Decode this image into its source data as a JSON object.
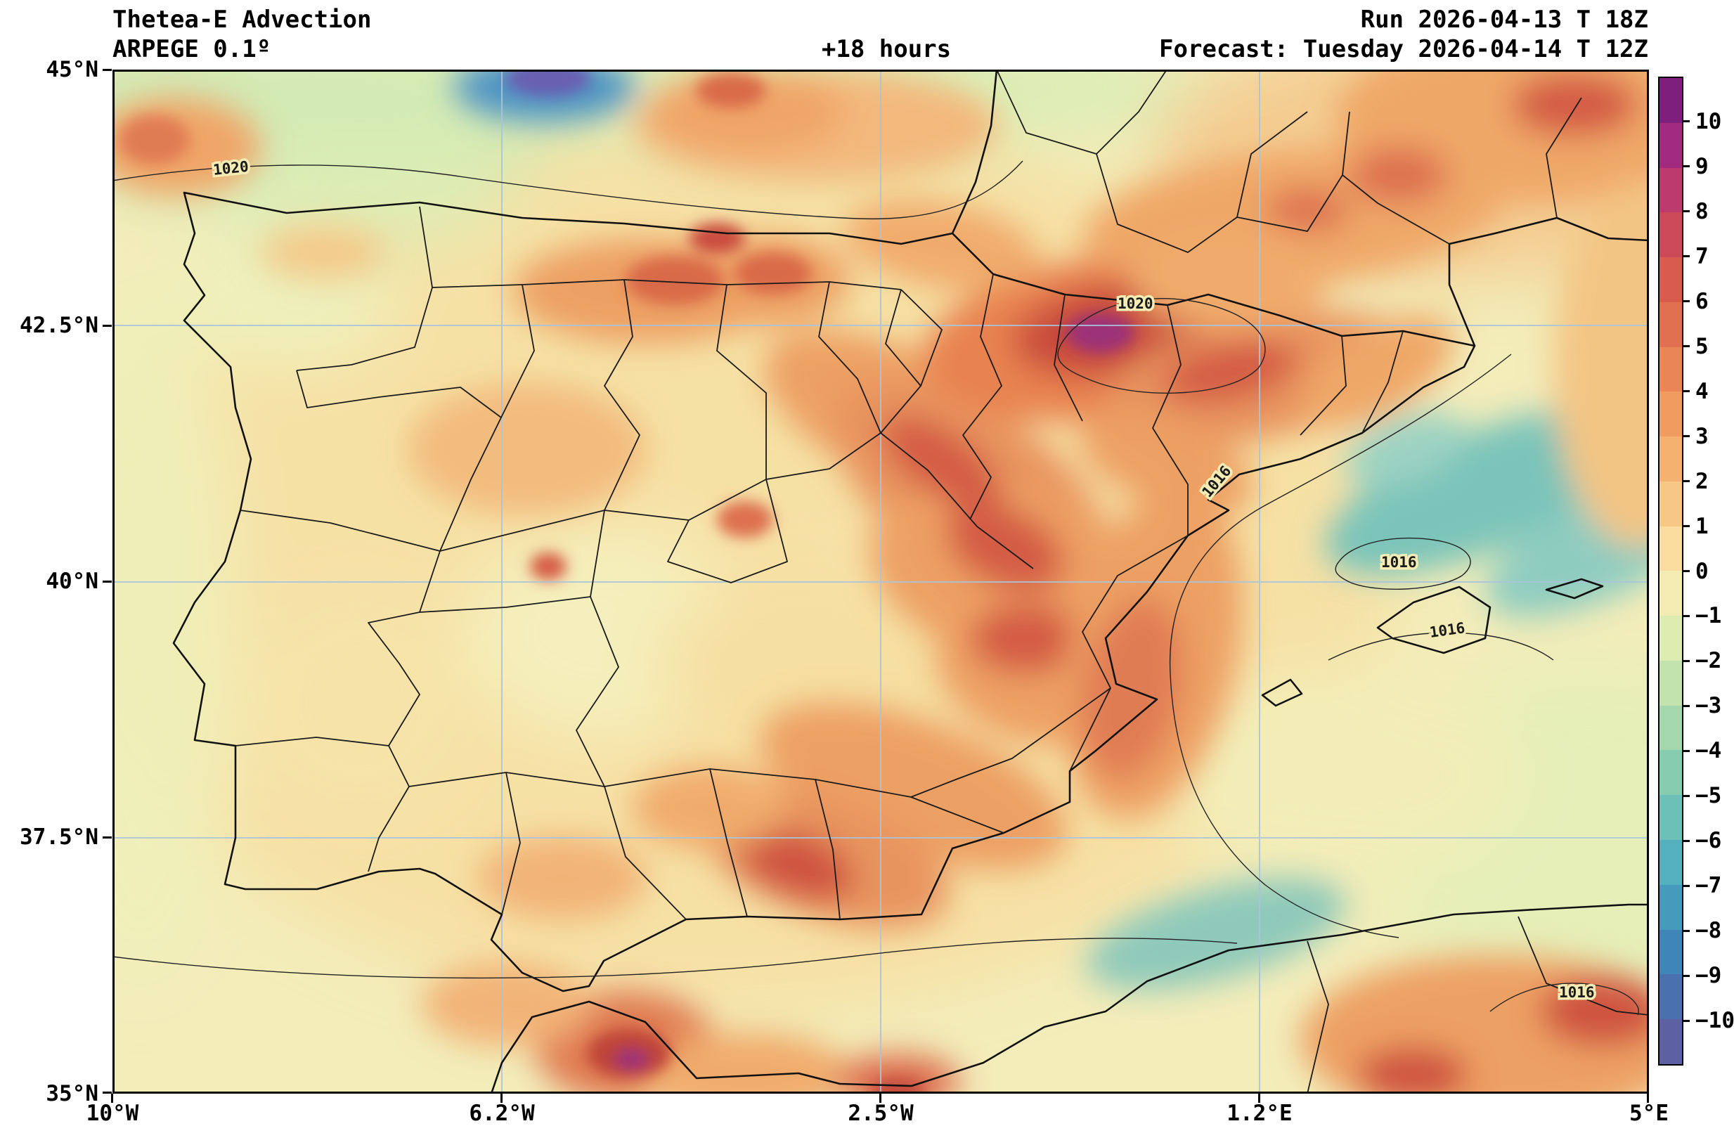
{
  "header": {
    "title": "Thetea-E Advection",
    "model": "ARPEGE 0.1º",
    "lead_time": "+18 hours",
    "run": "Run 2026-04-13 T 18Z",
    "forecast": "Forecast: Tuesday 2026-04-14 T 12Z"
  },
  "axes": {
    "x_ticks": [
      "10°W",
      "6.2°W",
      "2.5°W",
      "1.2°E",
      "5°E"
    ],
    "y_ticks": [
      "45°N",
      "42.5°N",
      "40°N",
      "37.5°N",
      "35°N"
    ]
  },
  "colorbar": {
    "ticks": [
      "10",
      "9",
      "8",
      "7",
      "6",
      "5",
      "4",
      "3",
      "2",
      "1",
      "0",
      "−1",
      "−2",
      "−3",
      "−4",
      "−5",
      "−6",
      "−7",
      "−8",
      "−9",
      "−10"
    ],
    "colors": [
      "#7e1f7e",
      "#a02a7e",
      "#bc3a6e",
      "#cb4a59",
      "#d75c4d",
      "#e0704f",
      "#e98556",
      "#ef9b61",
      "#f4b171",
      "#f7c787",
      "#fadd9e",
      "#f2ecb2",
      "#ddecb0",
      "#c2e3ad",
      "#a4d8ac",
      "#86ccb1",
      "#6cc0b8",
      "#55b0bd",
      "#469bbd",
      "#3f85b7",
      "#4a70ad",
      "#5d61a4"
    ],
    "border_color": "#000000"
  },
  "map": {
    "isobar_labels": [
      "1020",
      "1020",
      "1016",
      "1016",
      "1016",
      "1016"
    ],
    "gridline_color": "#a8c4dc",
    "boundary_color": "#111111"
  },
  "chart_data": {
    "type": "heatmap",
    "title": "Thetea-E Advection",
    "model": "ARPEGE 0.1º",
    "lead_time_hours": 18,
    "run": "2026-04-13 18Z",
    "valid": "Tuesday 2026-04-14 12Z",
    "region": "Iberian Peninsula, Balearic Islands, southern France, NW Africa",
    "x": {
      "label": "longitude",
      "range": [
        "10°W",
        "5°E"
      ],
      "ticks": [
        "10°W",
        "6.2°W",
        "2.5°W",
        "1.2°E",
        "5°E"
      ]
    },
    "y": {
      "label": "latitude",
      "range": [
        "35°N",
        "45°N"
      ],
      "ticks": [
        "45°N",
        "42.5°N",
        "40°N",
        "37.5°N",
        "35°N"
      ]
    },
    "colorbar": {
      "min": -10,
      "max": 10,
      "tick_step": 1,
      "ticks": [
        10,
        9,
        8,
        7,
        6,
        5,
        4,
        3,
        2,
        1,
        0,
        -1,
        -2,
        -3,
        -4,
        -5,
        -6,
        -7,
        -8,
        -9,
        -10
      ],
      "positive_color_ramp": "pale yellow -> orange -> red -> magenta/purple",
      "negative_color_ramp": "pale yellow -> green -> teal -> blue/purple"
    },
    "overlay_contours": {
      "variable": "mean sea level pressure (hPa)",
      "labeled_values": [
        1020,
        1016
      ]
    },
    "grid": true,
    "legend_position": "right",
    "notable_features": [
      {
        "area": "NE Spain (Aragon/Catalonia, ~0.3W 42.4N)",
        "value_estimate": 8,
        "description": "strongest positive theta-e advection, small purple core >9"
      },
      {
        "area": "diagonal band central-eastern Spain (2.5W 41.5N to 1W 39.5N)",
        "value_estimate": 6
      },
      {
        "area": "northern Castile (~4.8W 42.8N)",
        "value_estimate": 6
      },
      {
        "area": "SE Spain near Granada (~3.4W 37.2N)",
        "value_estimate": 6
      },
      {
        "area": "Alboran / Morocco coast spot (~5W 35.4N)",
        "value_estimate": 8,
        "description": "red with small purple core at bottom edge"
      },
      {
        "area": "southern France / NE corner",
        "value_estimate": 5
      },
      {
        "area": "Balearic Sea (~3.3E 40.9N)",
        "value_estimate": -4,
        "description": "teal negative advection patch"
      },
      {
        "area": "Bay of Biscay (~5.8W 44.9N)",
        "value_estimate": -9,
        "description": "small strong negative blue/purple core at top edge"
      },
      {
        "area": "Algerian coast (~1E 36.6N)",
        "value_estimate": -4
      },
      {
        "area": "most of interior Iberia background",
        "value_estimate": 1.5
      }
    ]
  }
}
